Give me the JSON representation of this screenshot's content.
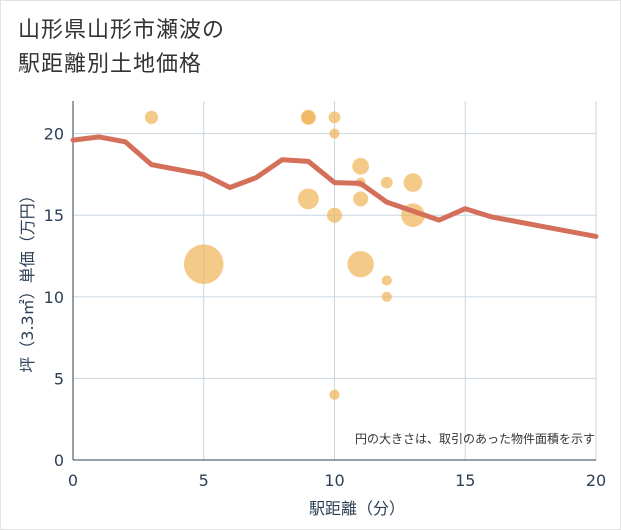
{
  "title_line1": "山形県山形市瀬波の",
  "title_line2": "駅距離別土地価格",
  "chart_data": {
    "type": "scatter",
    "xlabel": "駅距離（分）",
    "ylabel": "坪（3.3㎡）単価（万円）",
    "xlim": [
      0,
      20
    ],
    "ylim": [
      0,
      22
    ],
    "xticks": [
      "0",
      "5",
      "10",
      "15",
      "20"
    ],
    "yticks": [
      "0",
      "5",
      "10",
      "15",
      "20"
    ],
    "grid": true,
    "note": "円の大きさは、取引のあった物件面積を示す",
    "bubble_color": "#f0b455",
    "line_color": "#d4705a",
    "points": [
      {
        "x": 3,
        "y": 21,
        "size": 1
      },
      {
        "x": 5,
        "y": 12,
        "size": 9
      },
      {
        "x": 9,
        "y": 21,
        "size": 1
      },
      {
        "x": 9,
        "y": 21,
        "size": 1.3
      },
      {
        "x": 9,
        "y": 16,
        "size": 2.5
      },
      {
        "x": 10,
        "y": 21,
        "size": 0.8
      },
      {
        "x": 10,
        "y": 20,
        "size": 0.6
      },
      {
        "x": 10,
        "y": 15,
        "size": 1.3
      },
      {
        "x": 10,
        "y": 4,
        "size": 0.6
      },
      {
        "x": 11,
        "y": 18,
        "size": 1.6
      },
      {
        "x": 11,
        "y": 17,
        "size": 0.6
      },
      {
        "x": 11,
        "y": 16,
        "size": 1.3
      },
      {
        "x": 11,
        "y": 12,
        "size": 4
      },
      {
        "x": 12,
        "y": 17,
        "size": 0.8
      },
      {
        "x": 12,
        "y": 11,
        "size": 0.6
      },
      {
        "x": 12,
        "y": 10,
        "size": 0.6
      },
      {
        "x": 13,
        "y": 17,
        "size": 2
      },
      {
        "x": 13,
        "y": 15,
        "size": 3.2
      }
    ],
    "trend": {
      "x": [
        0,
        1,
        2,
        3,
        4,
        5,
        6,
        7,
        8,
        9,
        10,
        11,
        12,
        13,
        14,
        15,
        16,
        17,
        18,
        19,
        20
      ],
      "y": [
        19.6,
        19.8,
        19.5,
        18.1,
        17.8,
        17.5,
        16.7,
        17.3,
        18.4,
        18.3,
        17.0,
        16.95,
        15.8,
        15.25,
        14.7,
        15.4,
        14.9,
        14.6,
        14.3,
        14.0,
        13.7
      ]
    }
  }
}
